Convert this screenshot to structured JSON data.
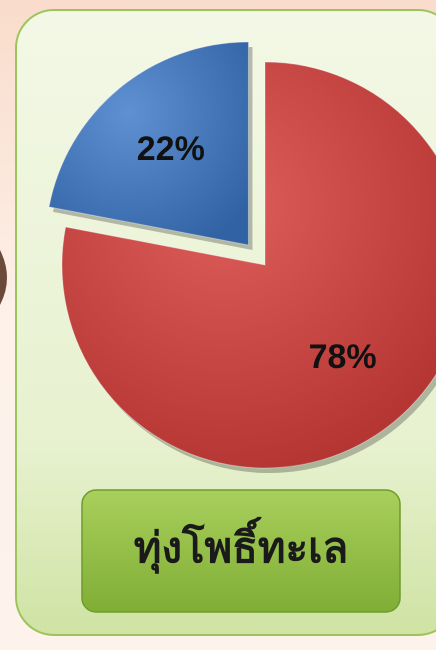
{
  "chart_data": {
    "type": "pie",
    "title": "ทุ่งโพธิ์ทะเล",
    "series": [
      {
        "values": [
          78,
          22
        ],
        "value_labels": [
          "78%",
          "22%"
        ],
        "colors": [
          "#d63b37",
          "#3c78c8"
        ],
        "explode": [
          false,
          true
        ]
      }
    ]
  }
}
